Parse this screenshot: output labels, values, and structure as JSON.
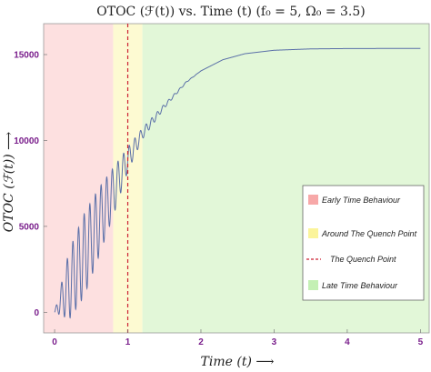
{
  "chart_data": {
    "type": "line",
    "title": "OTOC (ℱ(t)) vs. Time (t) (f₀ = 5, Ω₀ = 3.5)",
    "xlabel": "Time (t) ⟶",
    "ylabel": "OTOC (ℱ(t)) ⟶",
    "xlim": [
      -0.15,
      5.12
    ],
    "ylim": [
      -1200,
      16800
    ],
    "xticks": [
      0,
      1,
      2,
      3,
      4,
      5
    ],
    "yticks": [
      0,
      5000,
      10000,
      15000
    ],
    "grid": false,
    "legend_position": "center-right",
    "regions": [
      {
        "label": "Early Time Behaviour",
        "x_range": [
          -0.15,
          0.8
        ],
        "color": "#fde0e0",
        "legend_color": "#f7a8a8"
      },
      {
        "label": "Around The Quench Point",
        "x_range": [
          0.8,
          1.2
        ],
        "color": "#fdfad2",
        "legend_color": "#fbf49a"
      },
      {
        "label": "Late Time Behaviour",
        "x_range": [
          1.2,
          5.12
        ],
        "color": "#e2f7d8",
        "legend_color": "#c4f0b4"
      }
    ],
    "quench_line": {
      "label": "The Quench Point",
      "x": 1.0,
      "color": "#cc2233"
    },
    "series": [
      {
        "color": "#5a6fa8",
        "x": [
          0.0,
          0.2,
          0.4,
          0.6,
          0.8,
          1.0,
          1.2,
          1.5,
          1.8,
          2.0,
          2.3,
          2.6,
          3.0,
          3.5,
          4.0,
          4.5,
          5.0
        ],
        "y_center": [
          0,
          1600,
          3300,
          5200,
          7000,
          8900,
          10400,
          12000,
          13400,
          14050,
          14700,
          15050,
          15250,
          15330,
          15350,
          15355,
          15355
        ],
        "oscillation_amplitude": [
          0,
          2000,
          2400,
          2000,
          1400,
          700,
          320,
          120,
          30,
          0,
          0,
          0,
          0,
          0,
          0,
          0,
          0
        ]
      }
    ]
  }
}
